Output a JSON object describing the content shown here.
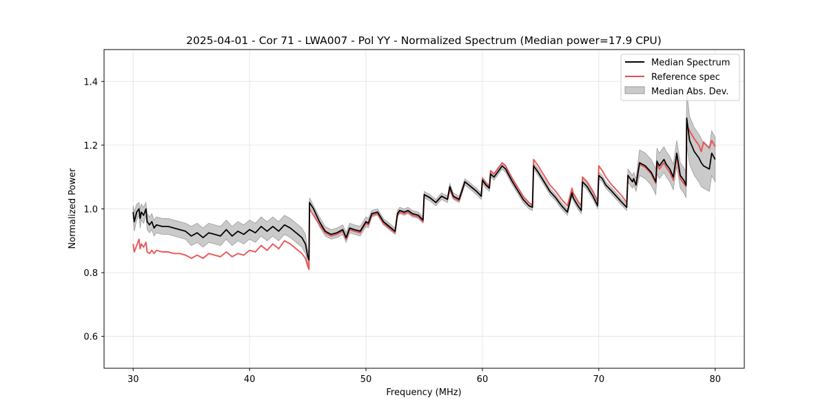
{
  "chart_data": {
    "type": "line",
    "title": "2025-04-01 - Cor 71 - LWA007 - Pol YY - Normalized Spectrum (Median power=17.9 CPU)",
    "xlabel": "Frequency (MHz)",
    "ylabel": "Normalized Power",
    "xlim": [
      27.5,
      82.5
    ],
    "ylim": [
      0.5,
      1.5
    ],
    "xticks": [
      30,
      40,
      50,
      60,
      70,
      80
    ],
    "yticks": [
      0.6,
      0.8,
      1.0,
      1.2,
      1.4
    ],
    "grid": true,
    "legend_position": "top-right",
    "legend": [
      "Median Spectrum",
      "Reference spec",
      "Median Abs. Dev."
    ],
    "colors": {
      "median": "#000000",
      "reference": "#e8494a",
      "mad_fill": "#b4b4b4",
      "mad_edge": "#9a9a9a",
      "grid": "#e6e6e6"
    },
    "series": [
      {
        "name": "Median Spectrum",
        "x": [
          30.0,
          30.1,
          30.3,
          30.5,
          30.6,
          30.7,
          30.9,
          31.1,
          31.2,
          31.4,
          31.6,
          31.8,
          32.0,
          32.5,
          33.0,
          33.5,
          34.0,
          34.5,
          35.0,
          35.5,
          36.0,
          36.5,
          37.0,
          37.5,
          38.0,
          38.5,
          39.0,
          39.5,
          40.0,
          40.5,
          41.0,
          41.5,
          42.0,
          42.5,
          43.0,
          43.5,
          44.0,
          44.5,
          44.8,
          45.0,
          45.1,
          45.15,
          45.5,
          46.0,
          46.5,
          47.0,
          47.5,
          48.0,
          48.3,
          48.6,
          49.0,
          49.5,
          50.0,
          50.2,
          50.5,
          51.0,
          51.5,
          52.0,
          52.5,
          52.7,
          52.9,
          53.3,
          53.6,
          54.0,
          54.5,
          54.9,
          55.0,
          55.5,
          56.0,
          56.5,
          57.0,
          57.2,
          57.5,
          58.0,
          58.5,
          59.0,
          59.5,
          59.9,
          60.0,
          60.3,
          60.6,
          60.7,
          61.0,
          61.3,
          61.7,
          62.0,
          62.5,
          63.0,
          63.5,
          64.0,
          64.3,
          64.4,
          64.8,
          65.3,
          65.8,
          66.3,
          66.8,
          67.3,
          67.7,
          67.8,
          68.2,
          68.5,
          68.6,
          69.0,
          69.5,
          69.9,
          70.0,
          70.3,
          70.6,
          71.0,
          71.5,
          72.0,
          72.4,
          72.5,
          72.9,
          73.0,
          73.2,
          73.5,
          74.0,
          74.5,
          74.9,
          75.0,
          75.2,
          75.6,
          75.8,
          76.1,
          76.4,
          76.7,
          77.0,
          77.3,
          77.5,
          77.55,
          77.8,
          78.2,
          78.6,
          78.8,
          79.0,
          79.5,
          79.7,
          80.0
        ],
        "values": [
          0.99,
          0.96,
          0.99,
          1.0,
          0.97,
          0.99,
          0.98,
          1.0,
          0.96,
          0.95,
          0.96,
          0.94,
          0.95,
          0.945,
          0.945,
          0.94,
          0.935,
          0.93,
          0.915,
          0.925,
          0.91,
          0.925,
          0.92,
          0.915,
          0.935,
          0.915,
          0.93,
          0.92,
          0.935,
          0.925,
          0.945,
          0.93,
          0.945,
          0.93,
          0.95,
          0.94,
          0.925,
          0.91,
          0.89,
          0.85,
          0.84,
          1.02,
          1.0,
          0.96,
          0.93,
          0.92,
          0.925,
          0.935,
          0.91,
          0.94,
          0.935,
          0.93,
          0.96,
          0.955,
          0.985,
          0.99,
          0.96,
          0.945,
          0.93,
          0.985,
          0.995,
          0.99,
          0.995,
          0.985,
          0.98,
          0.965,
          1.045,
          1.035,
          1.02,
          1.04,
          1.03,
          1.07,
          1.04,
          1.03,
          1.085,
          1.07,
          1.055,
          1.04,
          1.09,
          1.075,
          1.065,
          1.11,
          1.1,
          1.115,
          1.135,
          1.125,
          1.09,
          1.06,
          1.03,
          1.01,
          1.005,
          1.135,
          1.115,
          1.085,
          1.055,
          1.035,
          1.01,
          0.99,
          1.05,
          1.035,
          1.01,
          0.995,
          1.085,
          1.07,
          1.04,
          1.01,
          1.105,
          1.095,
          1.075,
          1.06,
          1.04,
          1.02,
          1.005,
          1.105,
          1.085,
          1.095,
          1.075,
          1.145,
          1.135,
          1.115,
          1.085,
          1.15,
          1.135,
          1.155,
          1.14,
          1.125,
          1.1,
          1.175,
          1.105,
          1.09,
          1.075,
          1.285,
          1.215,
          1.18,
          1.16,
          1.145,
          1.135,
          1.125,
          1.175,
          1.155
        ]
      },
      {
        "name": "Reference spec",
        "x": [
          30.0,
          30.1,
          30.3,
          30.5,
          30.6,
          30.7,
          30.9,
          31.1,
          31.2,
          31.4,
          31.6,
          31.8,
          32.0,
          32.5,
          33.0,
          33.5,
          34.0,
          34.5,
          35.0,
          35.5,
          36.0,
          36.5,
          37.0,
          37.5,
          38.0,
          38.5,
          39.0,
          39.5,
          40.0,
          40.5,
          41.0,
          41.5,
          42.0,
          42.5,
          43.0,
          43.5,
          44.0,
          44.5,
          44.8,
          45.0,
          45.1,
          45.15,
          45.5,
          46.0,
          46.5,
          47.0,
          47.5,
          48.0,
          48.3,
          48.6,
          49.0,
          49.5,
          50.0,
          50.2,
          50.5,
          51.0,
          51.5,
          52.0,
          52.5,
          52.7,
          52.9,
          53.3,
          53.6,
          54.0,
          54.5,
          54.9,
          55.0,
          55.5,
          56.0,
          56.5,
          57.0,
          57.2,
          57.5,
          58.0,
          58.5,
          59.0,
          59.5,
          59.9,
          60.0,
          60.3,
          60.6,
          60.7,
          61.0,
          61.3,
          61.7,
          62.0,
          62.5,
          63.0,
          63.5,
          64.0,
          64.3,
          64.4,
          64.8,
          65.3,
          65.8,
          66.3,
          66.8,
          67.3,
          67.7,
          67.8,
          68.2,
          68.5,
          68.6,
          69.0,
          69.5,
          69.9,
          70.0,
          70.3,
          70.6,
          71.0,
          71.5,
          72.0,
          72.4,
          72.5,
          72.9,
          73.0,
          73.2,
          73.5,
          74.0,
          74.5,
          74.9,
          75.0,
          75.2,
          75.6,
          75.8,
          76.1,
          76.4,
          76.7,
          77.0,
          77.3,
          77.5,
          77.55,
          77.8,
          78.2,
          78.6,
          78.8,
          79.0,
          79.5,
          79.7,
          80.0
        ],
        "values": [
          0.89,
          0.865,
          0.885,
          0.905,
          0.875,
          0.89,
          0.88,
          0.895,
          0.865,
          0.86,
          0.87,
          0.86,
          0.87,
          0.865,
          0.865,
          0.86,
          0.86,
          0.855,
          0.845,
          0.855,
          0.845,
          0.86,
          0.855,
          0.85,
          0.865,
          0.85,
          0.86,
          0.855,
          0.87,
          0.865,
          0.885,
          0.87,
          0.89,
          0.875,
          0.9,
          0.89,
          0.875,
          0.86,
          0.845,
          0.82,
          0.81,
          1.0,
          0.98,
          0.95,
          0.925,
          0.915,
          0.92,
          0.93,
          0.905,
          0.935,
          0.93,
          0.925,
          0.955,
          0.95,
          0.98,
          0.985,
          0.955,
          0.94,
          0.925,
          0.98,
          0.99,
          0.985,
          0.99,
          0.98,
          0.975,
          0.96,
          1.045,
          1.035,
          1.02,
          1.04,
          1.03,
          1.06,
          1.035,
          1.025,
          1.085,
          1.07,
          1.055,
          1.04,
          1.095,
          1.08,
          1.07,
          1.12,
          1.11,
          1.125,
          1.145,
          1.135,
          1.1,
          1.07,
          1.04,
          1.02,
          1.01,
          1.155,
          1.135,
          1.105,
          1.075,
          1.055,
          1.03,
          1.01,
          1.065,
          1.05,
          1.025,
          1.01,
          1.1,
          1.085,
          1.055,
          1.025,
          1.135,
          1.12,
          1.1,
          1.08,
          1.06,
          1.04,
          1.02,
          1.105,
          1.085,
          1.095,
          1.075,
          1.14,
          1.13,
          1.11,
          1.08,
          1.14,
          1.125,
          1.145,
          1.13,
          1.115,
          1.09,
          1.165,
          1.095,
          1.08,
          1.07,
          1.265,
          1.245,
          1.22,
          1.2,
          1.18,
          1.21,
          1.19,
          1.215,
          1.195
        ]
      }
    ],
    "mad_band": {
      "name": "Median Abs. Dev.",
      "x": [
        30.0,
        30.1,
        30.3,
        30.5,
        30.6,
        30.7,
        30.9,
        31.1,
        31.2,
        31.4,
        31.6,
        31.8,
        32.0,
        32.5,
        33.0,
        33.5,
        34.0,
        34.5,
        35.0,
        35.5,
        36.0,
        36.5,
        37.0,
        37.5,
        38.0,
        38.5,
        39.0,
        39.5,
        40.0,
        40.5,
        41.0,
        41.5,
        42.0,
        42.5,
        43.0,
        43.5,
        44.0,
        44.5,
        44.8,
        45.0,
        45.1,
        45.15,
        45.5,
        46.0,
        46.5,
        47.0,
        47.5,
        48.0,
        48.3,
        48.6,
        49.0,
        49.5,
        50.0,
        50.2,
        50.5,
        51.0,
        51.5,
        52.0,
        52.5,
        52.7,
        52.9,
        53.3,
        53.6,
        54.0,
        54.5,
        54.9,
        55.0,
        55.5,
        56.0,
        56.5,
        57.0,
        57.2,
        57.5,
        58.0,
        58.5,
        59.0,
        59.5,
        59.9,
        60.0,
        60.3,
        60.6,
        60.7,
        61.0,
        61.3,
        61.7,
        62.0,
        62.5,
        63.0,
        63.5,
        64.0,
        64.3,
        64.4,
        64.8,
        65.3,
        65.8,
        66.3,
        66.8,
        67.3,
        67.7,
        67.8,
        68.2,
        68.5,
        68.6,
        69.0,
        69.5,
        69.9,
        70.0,
        70.3,
        70.6,
        71.0,
        71.5,
        72.0,
        72.4,
        72.5,
        72.9,
        73.0,
        73.2,
        73.5,
        74.0,
        74.5,
        74.9,
        75.0,
        75.2,
        75.6,
        75.8,
        76.1,
        76.4,
        76.7,
        77.0,
        77.3,
        77.5,
        77.55,
        77.8,
        78.2,
        78.6,
        78.8,
        79.0,
        79.5,
        79.7,
        80.0
      ],
      "upper": [
        1.01,
        0.99,
        1.015,
        1.02,
        1.0,
        1.015,
        1.005,
        1.02,
        0.985,
        0.975,
        0.985,
        0.965,
        0.975,
        0.97,
        0.97,
        0.965,
        0.96,
        0.955,
        0.945,
        0.955,
        0.94,
        0.955,
        0.95,
        0.945,
        0.965,
        0.945,
        0.96,
        0.95,
        0.965,
        0.955,
        0.975,
        0.96,
        0.975,
        0.96,
        0.98,
        0.97,
        0.955,
        0.94,
        0.92,
        0.87,
        0.86,
        1.035,
        1.01,
        0.975,
        0.945,
        0.935,
        0.94,
        0.95,
        0.925,
        0.955,
        0.95,
        0.945,
        0.975,
        0.97,
        0.995,
        1.0,
        0.97,
        0.955,
        0.94,
        0.995,
        1.005,
        1.0,
        1.005,
        0.995,
        0.99,
        0.975,
        1.055,
        1.045,
        1.03,
        1.05,
        1.04,
        1.08,
        1.05,
        1.04,
        1.095,
        1.08,
        1.065,
        1.05,
        1.1,
        1.085,
        1.075,
        1.12,
        1.11,
        1.125,
        1.145,
        1.135,
        1.1,
        1.07,
        1.04,
        1.02,
        1.015,
        1.145,
        1.125,
        1.095,
        1.065,
        1.045,
        1.02,
        1.0,
        1.06,
        1.045,
        1.02,
        1.005,
        1.095,
        1.08,
        1.05,
        1.02,
        1.115,
        1.105,
        1.085,
        1.07,
        1.05,
        1.03,
        1.015,
        1.125,
        1.105,
        1.115,
        1.095,
        1.185,
        1.175,
        1.155,
        1.125,
        1.19,
        1.175,
        1.195,
        1.18,
        1.165,
        1.14,
        1.215,
        1.145,
        1.13,
        1.115,
        1.37,
        1.29,
        1.255,
        1.235,
        1.22,
        1.205,
        1.195,
        1.245,
        1.225
      ],
      "lower": [
        0.97,
        0.93,
        0.965,
        0.98,
        0.94,
        0.965,
        0.955,
        0.98,
        0.935,
        0.925,
        0.935,
        0.915,
        0.925,
        0.92,
        0.92,
        0.915,
        0.91,
        0.905,
        0.885,
        0.895,
        0.88,
        0.895,
        0.89,
        0.885,
        0.905,
        0.885,
        0.9,
        0.89,
        0.905,
        0.895,
        0.915,
        0.9,
        0.915,
        0.9,
        0.92,
        0.91,
        0.895,
        0.88,
        0.86,
        0.83,
        0.82,
        1.005,
        0.99,
        0.945,
        0.915,
        0.905,
        0.91,
        0.92,
        0.895,
        0.925,
        0.92,
        0.915,
        0.945,
        0.94,
        0.975,
        0.98,
        0.95,
        0.935,
        0.92,
        0.975,
        0.985,
        0.98,
        0.985,
        0.975,
        0.97,
        0.955,
        1.035,
        1.025,
        1.01,
        1.03,
        1.02,
        1.06,
        1.03,
        1.02,
        1.075,
        1.06,
        1.045,
        1.03,
        1.08,
        1.065,
        1.055,
        1.1,
        1.09,
        1.105,
        1.125,
        1.115,
        1.08,
        1.05,
        1.02,
        1.0,
        0.995,
        1.125,
        1.105,
        1.075,
        1.045,
        1.025,
        1.0,
        0.98,
        1.04,
        1.025,
        1.0,
        0.985,
        1.075,
        1.06,
        1.03,
        1.0,
        1.095,
        1.085,
        1.065,
        1.05,
        1.03,
        1.01,
        0.995,
        1.085,
        1.065,
        1.075,
        1.055,
        1.105,
        1.095,
        1.075,
        1.045,
        1.11,
        1.095,
        1.115,
        1.1,
        1.085,
        1.06,
        1.135,
        1.065,
        1.05,
        1.035,
        1.2,
        1.14,
        1.105,
        1.085,
        1.07,
        1.065,
        1.055,
        1.105,
        1.085
      ]
    }
  }
}
